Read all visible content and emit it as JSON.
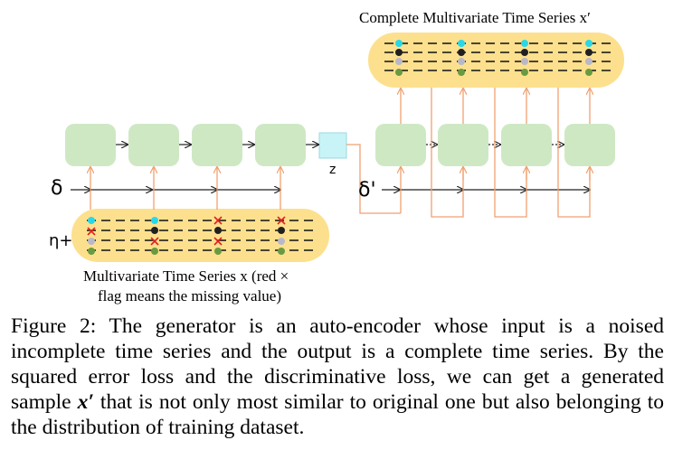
{
  "diagram": {
    "top_title": "Complete Multivariate Time Series x′",
    "bottom_title_line1": "Multivariate Time Series x (red ×",
    "bottom_title_line2": "flag means the missing value)",
    "delta_label": "δ",
    "delta_prime_label": "δ'",
    "eta_label": "η+",
    "z_label": "z",
    "colors": {
      "cell_fill": "#cfe8c4",
      "series_fill": "#fde08e",
      "z_fill": "#c8f4f8",
      "arrow_orange": "#f0a070",
      "dot_cyan": "#28d8e8",
      "dot_black": "#202020",
      "dot_gray": "#b8b8c8",
      "dot_green": "#6a9a40",
      "missing_red": "#e02020"
    }
  },
  "caption": {
    "label": "Figure 2:",
    "part1": " The generator is an auto-encoder whose input is a noised incomplete time series and the output is a complete time series. By the squared error loss and the discriminative loss, we can get a generated sample ",
    "x_prime": "x′",
    "part2": " that is not only most similar to original one but also belonging to the distribution of training dataset."
  }
}
